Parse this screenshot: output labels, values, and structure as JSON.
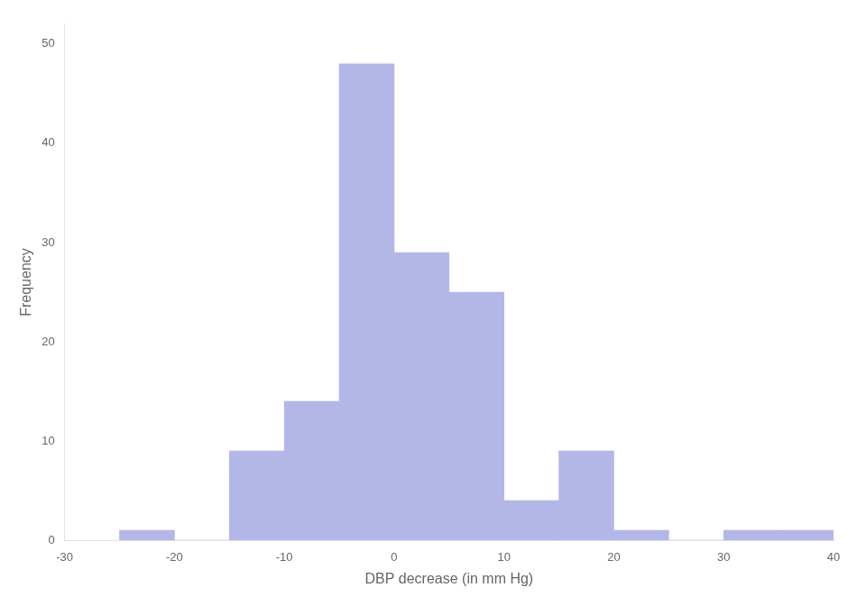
{
  "chart_data": {
    "type": "histogram",
    "xlabel": "DBP decrease (in mm Hg)",
    "ylabel": "Frequency",
    "bins": [
      -25,
      -20,
      -15,
      -10,
      -5,
      0,
      5,
      10,
      15,
      20,
      25,
      30,
      35,
      40
    ],
    "values": [
      1,
      0,
      9,
      14,
      48,
      29,
      25,
      4,
      9,
      1,
      0,
      1,
      1
    ],
    "color": "#b3b7e8",
    "xlim": [
      -30,
      40
    ],
    "ylim": [
      0,
      52
    ],
    "xticks": [
      -30,
      -20,
      -10,
      0,
      10,
      20,
      30,
      40
    ],
    "yticks": [
      0,
      10,
      20,
      30,
      40,
      50
    ],
    "grid": false
  }
}
